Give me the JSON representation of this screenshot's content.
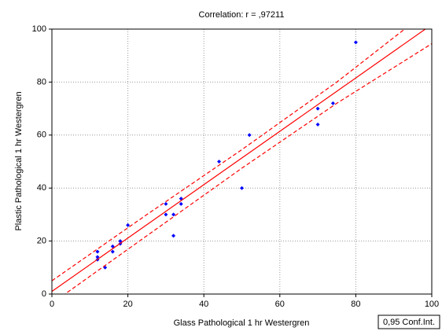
{
  "chart_data": {
    "type": "scatter",
    "title": "Correlation: r = ,97211",
    "x_label": "Glass Pathological  1 hr Westergren",
    "y_label": "Plastic Pathological  1 hr Westergren",
    "legend_label": "0,95 Conf.Int.",
    "xlim": [
      0,
      100
    ],
    "ylim": [
      0,
      100
    ],
    "xticks": [
      0,
      20,
      40,
      60,
      80,
      100
    ],
    "yticks": [
      0,
      20,
      40,
      60,
      80,
      100
    ],
    "grid": true,
    "series": [
      {
        "kind": "points",
        "color": "#0000ff",
        "x": [
          12,
          12,
          12,
          14,
          16,
          16,
          18,
          18,
          20,
          30,
          30,
          32,
          32,
          34,
          34,
          44,
          50,
          52,
          70,
          70,
          74,
          80
        ],
        "values": [
          16,
          14,
          13,
          10,
          18,
          16,
          20,
          19,
          26,
          34,
          30,
          30,
          22,
          36,
          34,
          50,
          40,
          60,
          70,
          64,
          72,
          95
        ]
      },
      {
        "kind": "line",
        "style": "solid",
        "color": "#ff0000",
        "x": [
          0,
          100
        ],
        "values": [
          1,
          101.7
        ]
      },
      {
        "kind": "line",
        "style": "dashed",
        "color": "#ff0000",
        "x": [
          0,
          25,
          50,
          75,
          100
        ],
        "values": [
          5,
          30,
          54.5,
          80,
          108
        ]
      },
      {
        "kind": "line",
        "style": "dashed",
        "color": "#ff0000",
        "x": [
          0,
          25,
          50,
          75,
          100
        ],
        "values": [
          -3.5,
          22,
          47.5,
          72,
          94.5
        ]
      }
    ]
  }
}
